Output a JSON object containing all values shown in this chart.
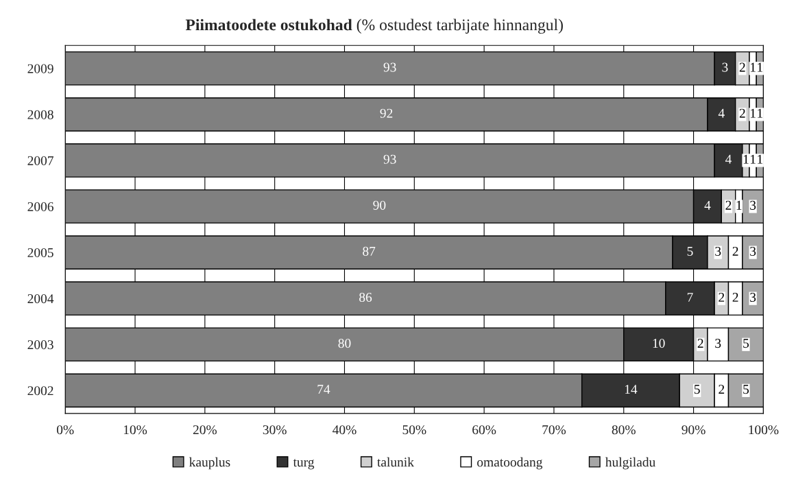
{
  "chart_data": {
    "type": "bar",
    "orientation": "horizontal",
    "stacked": true,
    "title": "Piimatoodete ostukohad",
    "subtitle": "(% ostudest tarbijate hinnangul)",
    "categories": [
      "2009",
      "2008",
      "2007",
      "2006",
      "2005",
      "2004",
      "2003",
      "2002"
    ],
    "series": [
      {
        "name": "kauplus",
        "color": "#808080",
        "values": [
          93,
          92,
          93,
          90,
          87,
          86,
          80,
          74
        ]
      },
      {
        "name": "turg",
        "color": "#333333",
        "values": [
          3,
          4,
          4,
          4,
          5,
          7,
          10,
          14
        ]
      },
      {
        "name": "talunik",
        "color": "#d0d0d0",
        "values": [
          2,
          2,
          1,
          2,
          3,
          2,
          2,
          5
        ]
      },
      {
        "name": "omatoodang",
        "color": "#ffffff",
        "values": [
          1,
          1,
          1,
          1,
          2,
          2,
          3,
          2
        ]
      },
      {
        "name": "hulgiladu",
        "color": "#a6a6a6",
        "values": [
          1,
          1,
          1,
          3,
          3,
          3,
          5,
          5
        ]
      }
    ],
    "xlim": [
      0,
      100
    ],
    "xticks": [
      {
        "value": 0,
        "label": "0%"
      },
      {
        "value": 10,
        "label": "10%"
      },
      {
        "value": 20,
        "label": "20%"
      },
      {
        "value": 30,
        "label": "30%"
      },
      {
        "value": 40,
        "label": "40%"
      },
      {
        "value": 50,
        "label": "50%"
      },
      {
        "value": 60,
        "label": "60%"
      },
      {
        "value": 70,
        "label": "70%"
      },
      {
        "value": 80,
        "label": "80%"
      },
      {
        "value": 90,
        "label": "90%"
      },
      {
        "value": 100,
        "label": "100%"
      }
    ],
    "grid": "x",
    "legend": "bottom",
    "data_labels": true
  }
}
